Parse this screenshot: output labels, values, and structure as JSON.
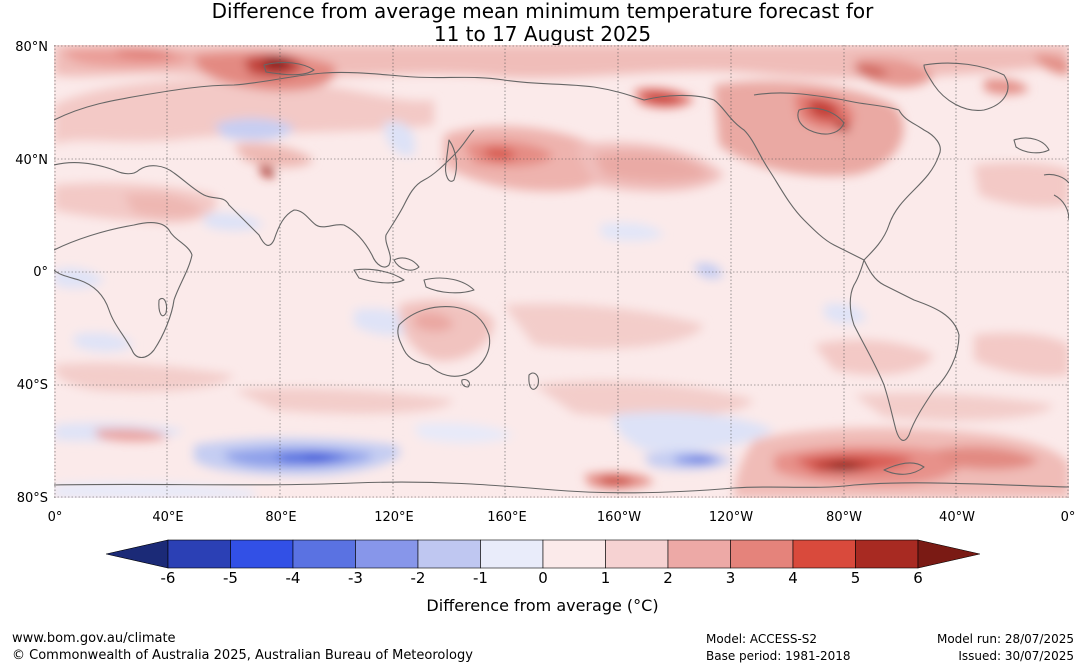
{
  "title": {
    "line1": "Difference from average mean minimum temperature forecast for",
    "line2": "11 to 17 August 2025"
  },
  "map": {
    "lat_labels": [
      "80°N",
      "40°N",
      "0°",
      "40°S",
      "80°S"
    ],
    "lon_labels": [
      "0°",
      "40°E",
      "80°E",
      "120°E",
      "160°E",
      "160°W",
      "120°W",
      "80°W",
      "40°W",
      "0°"
    ],
    "ocean_base_color": "#fbeaea",
    "coastline_color": "#666666"
  },
  "colorbar": {
    "label": "Difference from average (°C)",
    "ticks": [
      "-6",
      "-5",
      "-4",
      "-3",
      "-2",
      "-1",
      "0",
      "1",
      "2",
      "3",
      "4",
      "5",
      "6"
    ],
    "colors": [
      "#1b2a77",
      "#2b40b5",
      "#3250e6",
      "#5a72e2",
      "#8796ea",
      "#bfc7f1",
      "#e9ecfa",
      "#fbeaea",
      "#f6d2d2",
      "#eda9a6",
      "#e5837b",
      "#d94a3c",
      "#a82a22",
      "#7a1a14"
    ]
  },
  "footer": {
    "url": "www.bom.gov.au/climate",
    "copyright": "© Commonwealth of Australia 2025, Australian Bureau of Meteorology",
    "model": "Model: ACCESS-S2",
    "base_period": "Base period: 1981-2018",
    "model_run": "Model run: 28/07/2025",
    "issued": "Issued: 30/07/2025"
  }
}
